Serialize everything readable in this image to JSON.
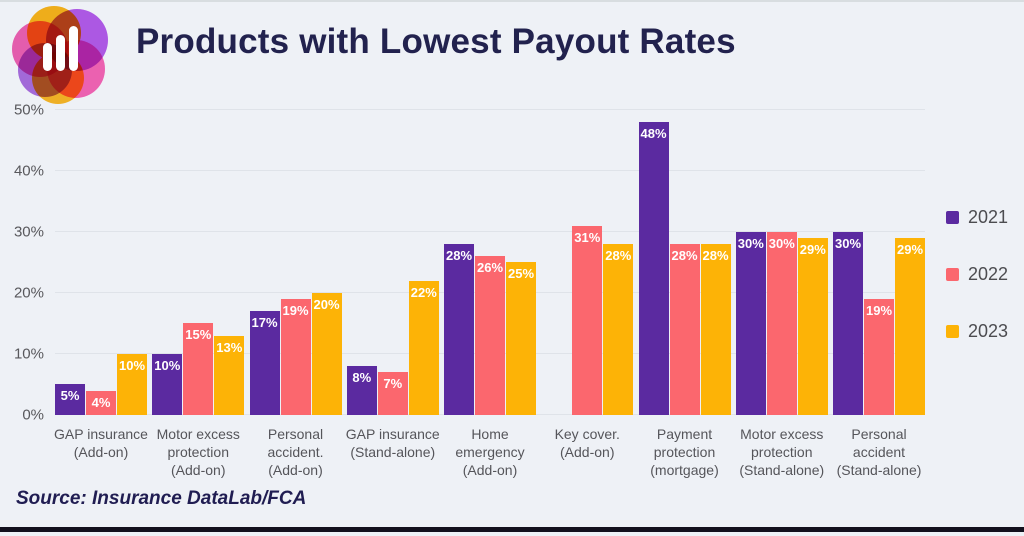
{
  "header": {
    "title": "Products with Lowest Payout Rates",
    "logo": "overlapping-circles-bar-chart-logo"
  },
  "footer": {
    "source": "Source: Insurance DataLab/FCA"
  },
  "chart_data": {
    "type": "bar",
    "title": "Products with Lowest Payout Rates",
    "categories": [
      "GAP insurance\n(Add-on)",
      "Motor excess\nprotection\n(Add-on)",
      "Personal\naccident.\n(Add-on)",
      "GAP insurance\n(Stand-alone)",
      "Home\nemergency\n(Add-on)",
      "Key cover.\n(Add-on)",
      "Payment\nprotection\n(mortgage)",
      "Motor excess\nprotection\n(Stand-alone)",
      "Personal\naccident\n(Stand-alone)"
    ],
    "series": [
      {
        "name": "2021",
        "color": "#5b2aa0",
        "values": [
          5,
          10,
          17,
          8,
          28,
          null,
          48,
          30,
          30
        ]
      },
      {
        "name": "2022",
        "color": "#fb676e",
        "values": [
          4,
          15,
          19,
          7,
          26,
          31,
          28,
          30,
          19
        ]
      },
      {
        "name": "2023",
        "color": "#fdb306",
        "values": [
          10,
          13,
          20,
          22,
          25,
          28,
          28,
          29,
          29
        ]
      }
    ],
    "ylim": [
      0,
      50
    ],
    "yticks": [
      "0%",
      "10%",
      "20%",
      "30%",
      "40%",
      "50%"
    ],
    "value_suffix": "%",
    "value_labels": true,
    "grid": true,
    "legend_position": "right",
    "background": "#eef1f6",
    "gridline_color": "#dfe3e9"
  }
}
